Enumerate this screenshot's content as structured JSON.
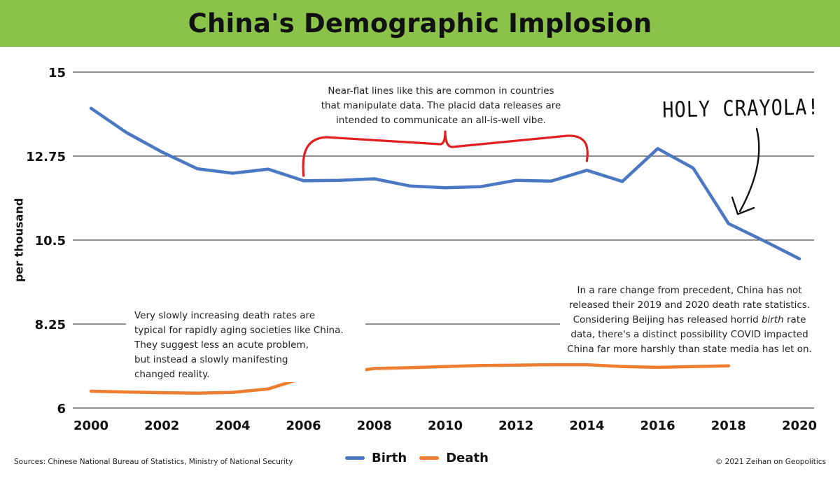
{
  "header": {
    "title": "China's Demographic Implosion",
    "background": "#8BC34A"
  },
  "annotations": {
    "flat_lines": [
      "Near-flat lines like this are common in countries",
      "that manipulate data. The placid data releases are",
      "intended to communicate an all-is-well vibe."
    ],
    "holy": "HOLY CRAYOLA!",
    "death_rates": [
      "Very slowly increasing death rates are",
      "typical for rapidly aging societies like China.",
      "They suggest less an acute problem,",
      "but instead a slowly manifesting",
      "changed reality."
    ],
    "rare_change": [
      "In a rare change from precedent, China has not",
      "released their 2019 and 2020 death rate statistics.",
      "Considering Beijing has released horrid birth rate",
      "data, there's a distinct possibility COVID impacted",
      "China far more harshly than state media has let on."
    ]
  },
  "footer": {
    "source": "Sources: Chinese National Bureau of Statistics, Ministry of National Security",
    "copyright": "© 2021 Zeihan on Geopolitics"
  },
  "colors": {
    "birth": "#4A78C2",
    "death": "#ED7D31",
    "bracket": "#E02020",
    "grid": "#222222",
    "header": "#8BC34A"
  },
  "chart_data": {
    "type": "line",
    "title": "China's Demographic Implosion",
    "xlabel": "",
    "ylabel": "per thousand",
    "x_tick_labels": [
      "2000",
      "2002",
      "2004",
      "2006",
      "2008",
      "2010",
      "2012",
      "2014",
      "2016",
      "2018",
      "2020"
    ],
    "y_tick_labels": [
      "15",
      "12.75",
      "10.5",
      "8.25",
      "6"
    ],
    "y_ticks": [
      15,
      12.75,
      10.5,
      8.25,
      6
    ],
    "xlim": [
      2000,
      2020
    ],
    "ylim": [
      6,
      15
    ],
    "grid": "horizontal",
    "legend_position": "bottom-center",
    "series": [
      {
        "name": "Birth",
        "color": "#4A78C2",
        "x": [
          2000,
          2001,
          2002,
          2003,
          2004,
          2005,
          2006,
          2007,
          2008,
          2009,
          2010,
          2011,
          2012,
          2013,
          2014,
          2015,
          2016,
          2017,
          2018,
          2019,
          2020
        ],
        "y": [
          14.03,
          13.38,
          12.86,
          12.41,
          12.29,
          12.4,
          12.09,
          12.1,
          12.14,
          11.95,
          11.9,
          11.93,
          12.1,
          12.08,
          12.37,
          12.07,
          12.95,
          12.43,
          10.94,
          10.48,
          10.0
        ]
      },
      {
        "name": "Death",
        "color": "#ED7D31",
        "x": [
          2000,
          2001,
          2002,
          2003,
          2004,
          2005,
          2006,
          2007,
          2008,
          2009,
          2010,
          2011,
          2012,
          2013,
          2014,
          2015,
          2016,
          2017,
          2018
        ],
        "y": [
          6.45,
          6.43,
          6.41,
          6.4,
          6.42,
          6.51,
          6.81,
          6.93,
          7.06,
          7.08,
          7.11,
          7.14,
          7.15,
          7.16,
          7.16,
          7.11,
          7.09,
          7.11,
          7.13
        ]
      }
    ]
  }
}
